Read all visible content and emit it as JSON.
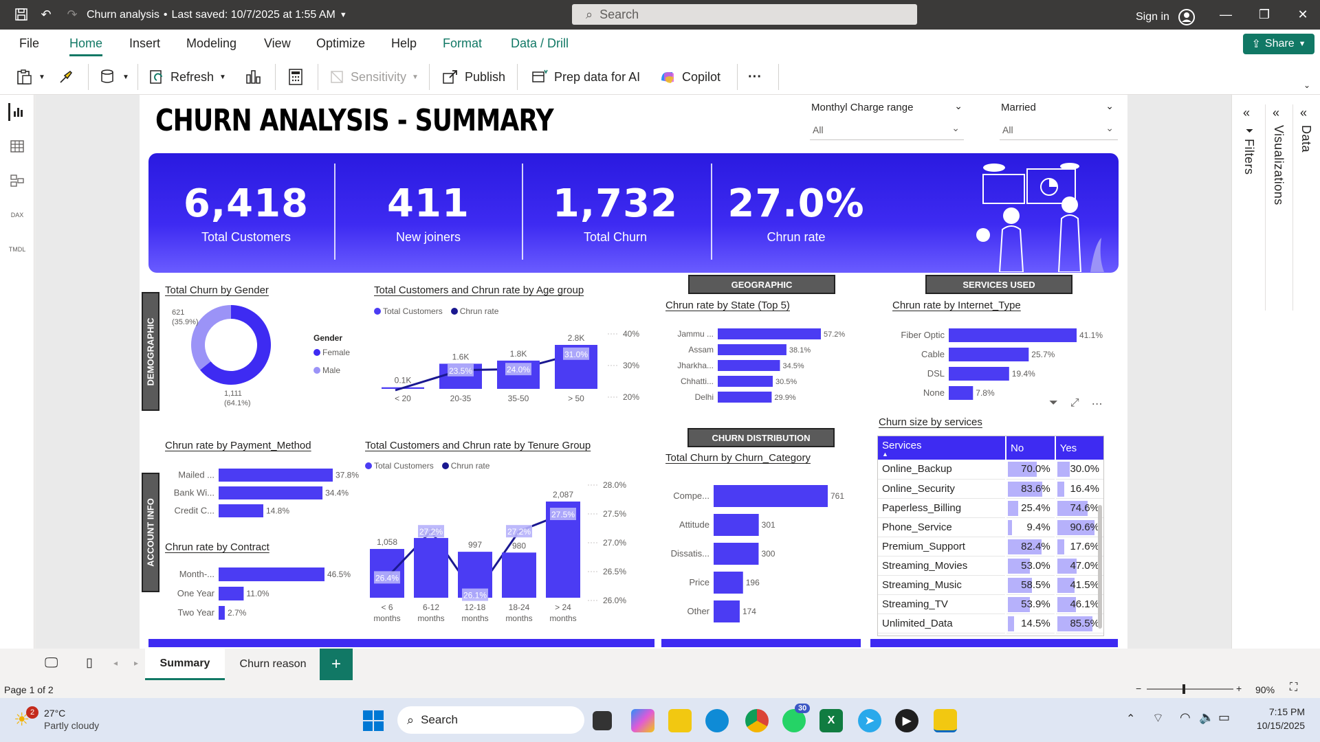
{
  "app": {
    "title": "Churn analysis",
    "saved": "Last saved: 10/7/2025 at 1:55 AM",
    "search_placeholder": "Search",
    "sign_in": "Sign in"
  },
  "ribbon_tabs": [
    "File",
    "Home",
    "Insert",
    "Modeling",
    "View",
    "Optimize",
    "Help",
    "Format",
    "Data / Drill"
  ],
  "share_label": "Share",
  "ribbon": {
    "refresh": "Refresh",
    "sensitivity": "Sensitivity",
    "publish": "Publish",
    "prep": "Prep data for AI",
    "copilot": "Copilot",
    "more": "···"
  },
  "panes": {
    "filters": "Filters",
    "visualizations": "Visualizations",
    "data": "Data"
  },
  "report": {
    "title": "CHURN ANALYSIS - SUMMARY",
    "slicers": [
      {
        "label": "Monthyl Charge range",
        "value": "All"
      },
      {
        "label": "Married",
        "value": "All"
      }
    ],
    "kpis": [
      {
        "value": "6,418",
        "caption": "Total Customers"
      },
      {
        "value": "411",
        "caption": "New joiners"
      },
      {
        "value": "1,732",
        "caption": "Total Churn"
      },
      {
        "value": "27.0%",
        "caption": "Chrun rate"
      }
    ],
    "sections": {
      "demographic": "DEMOGRAPHIC",
      "account": "ACCOUNT INFO",
      "geographic": "GEOGRAPHIC",
      "services": "SERVICES USED",
      "distribution": "CHURN DISTRIBUTION"
    },
    "visual_titles": {
      "gender": "Total Churn by Gender",
      "age": "Total Customers and Chrun rate by Age group",
      "state": "Chrun rate by State (Top 5)",
      "internet": "Chrun rate by Internet_Type",
      "payment": "Chrun rate by Payment_Method",
      "tenure": "Total Customers and Chrun rate by Tenure Group",
      "category": "Total Churn by Churn_Category",
      "contract": "Chrun rate by Contract",
      "services_table": "Churn size by services"
    },
    "legend": {
      "customers": "Total Customers",
      "rate": "Chrun rate",
      "gender_title": "Gender"
    }
  },
  "chart_data": [
    {
      "type": "pie",
      "title": "Total Churn by Gender",
      "labels": [
        "Female",
        "Male"
      ],
      "values": [
        1111,
        621
      ],
      "data_labels": [
        "1,111\n(64.1%)",
        "621\n(35.9%)"
      ],
      "colors": [
        "#3e2bf2",
        "#9b93f7"
      ]
    },
    {
      "type": "bar",
      "title": "Total Customers and Chrun rate by Age group",
      "categories": [
        "< 20",
        "20-35",
        "35-50",
        "> 50"
      ],
      "series": [
        {
          "name": "Total Customers",
          "values": [
            100,
            1600,
            1800,
            2800
          ],
          "labels": [
            "0.1K",
            "1.6K",
            "1.8K",
            "2.8K"
          ]
        },
        {
          "name": "Chrun rate",
          "values": [
            null,
            23.5,
            24.0,
            31.0
          ],
          "labels": [
            "",
            "23.5%",
            "24.0%",
            "31.0%"
          ]
        }
      ],
      "y2_ticks": [
        "40%",
        "30%",
        "20%"
      ]
    },
    {
      "type": "bar",
      "title": "Chrun rate by State (Top 5)",
      "categories": [
        "Jammu ...",
        "Assam",
        "Jharkha...",
        "Chhatti...",
        "Delhi"
      ],
      "values": [
        57.2,
        38.1,
        34.5,
        30.5,
        29.9
      ],
      "labels": [
        "57.2%",
        "38.1%",
        "34.5%",
        "30.5%",
        "29.9%"
      ]
    },
    {
      "type": "bar",
      "title": "Chrun rate by Internet_Type",
      "categories": [
        "Fiber Optic",
        "Cable",
        "DSL",
        "None"
      ],
      "values": [
        41.1,
        25.7,
        19.4,
        7.8
      ],
      "labels": [
        "41.1%",
        "25.7%",
        "19.4%",
        "7.8%"
      ]
    },
    {
      "type": "bar",
      "title": "Chrun rate by Payment_Method",
      "categories": [
        "Mailed ...",
        "Bank Wi...",
        "Credit C..."
      ],
      "values": [
        37.8,
        34.4,
        14.8
      ],
      "labels": [
        "37.8%",
        "34.4%",
        "14.8%"
      ]
    },
    {
      "type": "bar",
      "title": "Chrun rate by Contract",
      "categories": [
        "Month-...",
        "One Year",
        "Two Year"
      ],
      "values": [
        46.5,
        11.0,
        2.7
      ],
      "labels": [
        "46.5%",
        "11.0%",
        "2.7%"
      ]
    },
    {
      "type": "bar",
      "title": "Total Customers and Chrun rate by Tenure Group",
      "categories": [
        "< 6\nmonths",
        "6-12\nmonths",
        "12-18\nmonths",
        "18-24\nmonths",
        "> 24\nmonths"
      ],
      "series": [
        {
          "name": "Total Customers",
          "values": [
            1058,
            1296,
            997,
            980,
            2087
          ],
          "labels": [
            "1,058",
            "1,296",
            "997",
            "980",
            "2,087"
          ]
        },
        {
          "name": "Chrun rate",
          "values": [
            26.4,
            27.2,
            26.1,
            27.2,
            27.5
          ],
          "labels": [
            "26.4%",
            "27.2%",
            "26.1%",
            "27.2%",
            "27.5%"
          ]
        }
      ],
      "y2_ticks": [
        "28.0%",
        "27.5%",
        "27.0%",
        "26.5%",
        "26.0%"
      ]
    },
    {
      "type": "bar",
      "title": "Total Churn by Churn_Category",
      "categories": [
        "Compe...",
        "Attitude",
        "Dissatis...",
        "Price",
        "Other"
      ],
      "values": [
        761,
        301,
        300,
        196,
        174
      ],
      "labels": [
        "761",
        "301",
        "300",
        "196",
        "174"
      ]
    },
    {
      "type": "table",
      "title": "Churn size by services",
      "columns": [
        "Services",
        "No",
        "Yes"
      ],
      "rows": [
        [
          "Online_Backup",
          "70.0%",
          "30.0%"
        ],
        [
          "Online_Security",
          "83.6%",
          "16.4%"
        ],
        [
          "Paperless_Billing",
          "25.4%",
          "74.6%"
        ],
        [
          "Phone_Service",
          "9.4%",
          "90.6%"
        ],
        [
          "Premium_Support",
          "82.4%",
          "17.6%"
        ],
        [
          "Streaming_Movies",
          "53.0%",
          "47.0%"
        ],
        [
          "Streaming_Music",
          "58.5%",
          "41.5%"
        ],
        [
          "Streaming_TV",
          "53.9%",
          "46.1%"
        ],
        [
          "Unlimited_Data",
          "14.5%",
          "85.5%"
        ]
      ]
    }
  ],
  "page_tabs": [
    "Summary",
    "Churn reason"
  ],
  "status": {
    "page": "Page 1 of 2",
    "zoom": "90%"
  },
  "taskbar": {
    "weather_temp": "27°C",
    "weather_desc": "Partly cloudy",
    "weather_badge": "2",
    "search": "Search",
    "whatsapp_badge": "30",
    "time": "7:15 PM",
    "date": "10/15/2025"
  },
  "colors": {
    "accent": "#3e2bf2",
    "bar": "#4b3cf3",
    "light": "#b6b1fb",
    "line": "#1a1890"
  }
}
